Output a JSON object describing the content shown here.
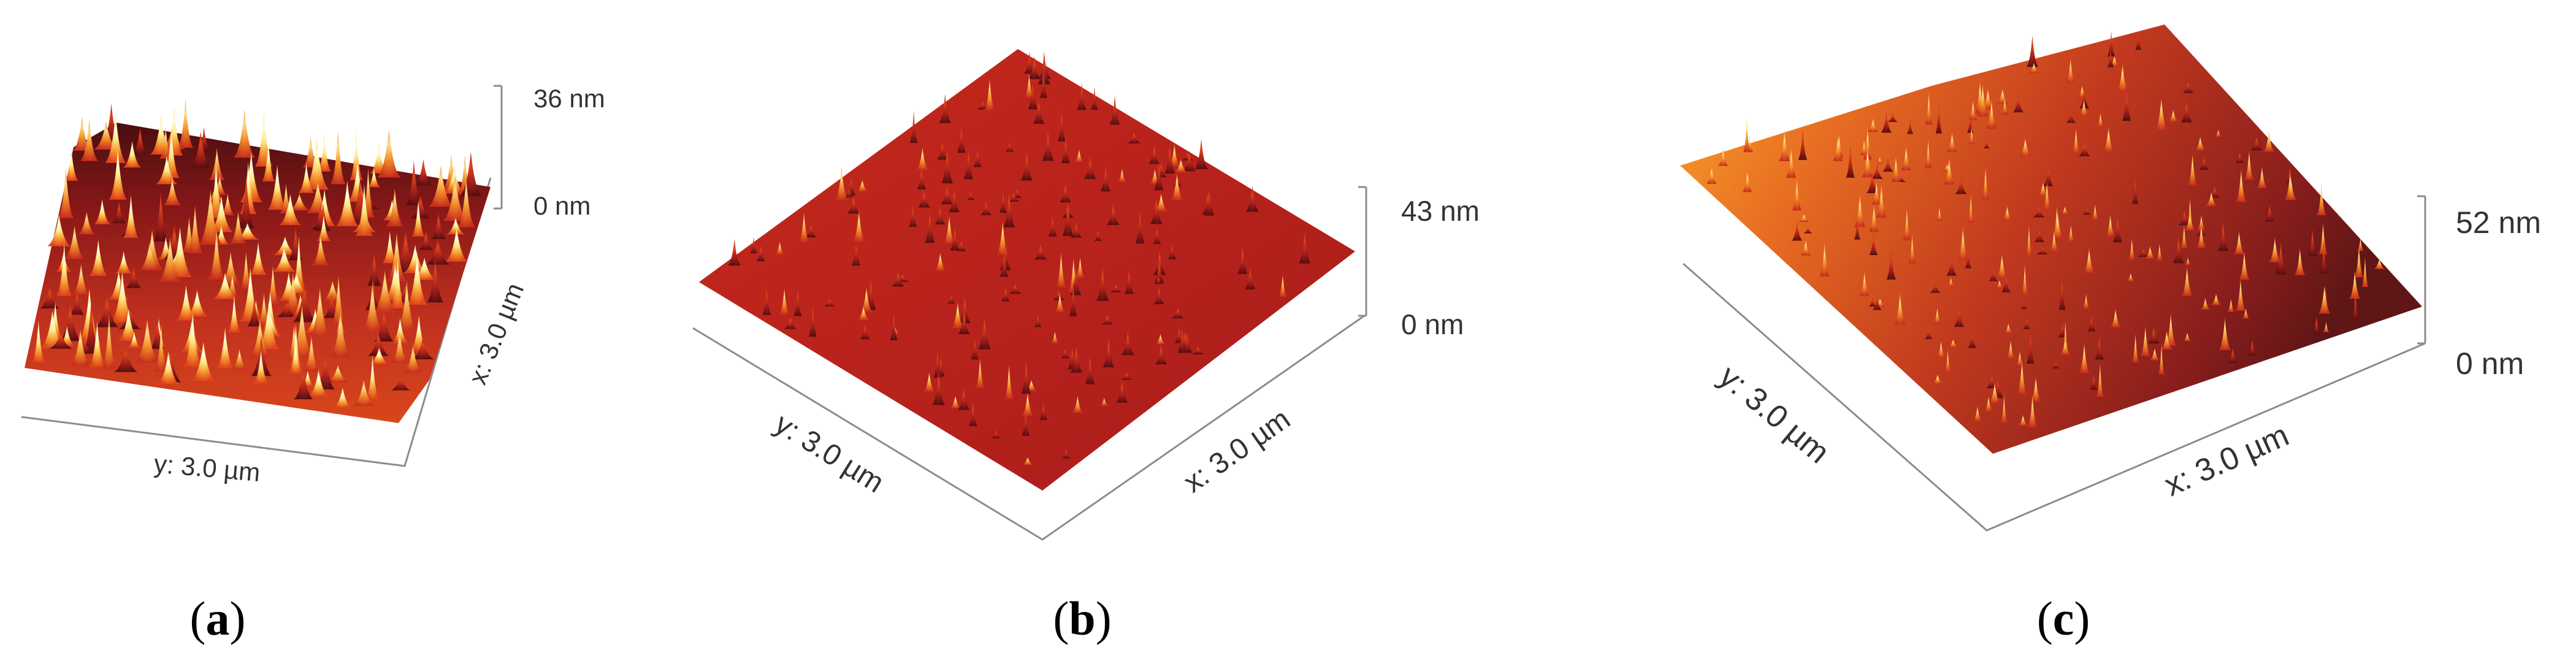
{
  "panels": [
    {
      "id": "a",
      "caption_letter": "a",
      "z_max_label": "36 nm",
      "z_min_label": "0 nm",
      "x_axis_label": "x: 3.0 µm",
      "y_axis_label": "y: 3.0 µm",
      "colormap": [
        "#3a0a0a",
        "#6e1414",
        "#b42323",
        "#e0461c",
        "#f5912d",
        "#fde882",
        "#fffbe6"
      ]
    },
    {
      "id": "b",
      "caption_letter": "b",
      "z_max_label": "43 nm",
      "z_min_label": "0 nm",
      "x_axis_label": "x: 3.0 µm",
      "y_axis_label": "y: 3.0 µm",
      "colormap": [
        "#7a1212",
        "#b52020",
        "#d63a1c",
        "#f08a2a",
        "#fde08a"
      ]
    },
    {
      "id": "c",
      "caption_letter": "c",
      "z_max_label": "52 nm",
      "z_min_label": "0 nm",
      "x_axis_label": "x: 3.0 µm",
      "y_axis_label": "y: 3.0 µm",
      "colormap": [
        "#5e1616",
        "#9d2121",
        "#cf3b1f",
        "#eb7a23",
        "#f9b030",
        "#fde49a"
      ]
    }
  ]
}
